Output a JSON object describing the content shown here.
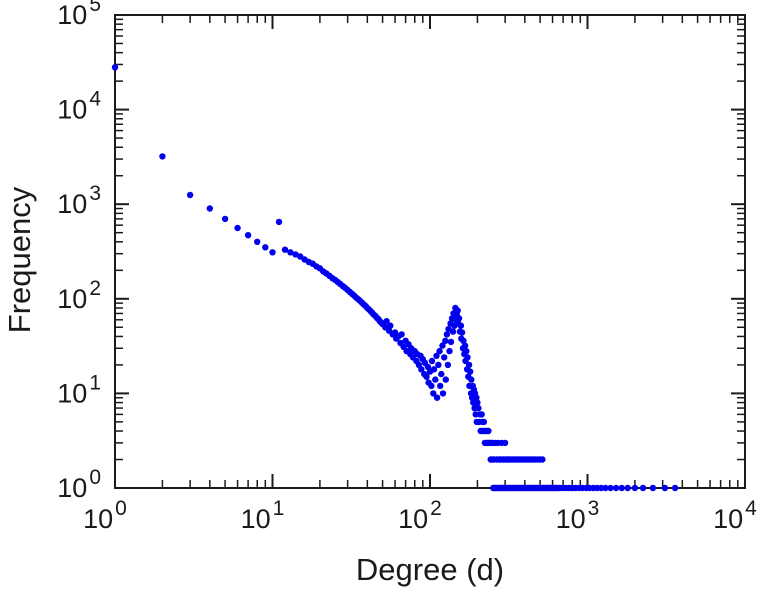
{
  "chart_data": {
    "type": "scatter",
    "title": "",
    "xlabel": "Degree (d)",
    "ylabel": "Frequency",
    "x_scale": "log",
    "y_scale": "log",
    "xlim": [
      1,
      10000
    ],
    "ylim": [
      1,
      100000
    ],
    "x_tick_exponents": [
      0,
      1,
      2,
      3,
      4
    ],
    "y_tick_exponents": [
      0,
      1,
      2,
      3,
      4,
      5
    ],
    "tick_base": "10",
    "grid": false,
    "legend": "none",
    "point_color": "#0000ee",
    "axis_color": "#1a1a1a",
    "background_color": "#ffffff",
    "points": [
      [
        1,
        28000
      ],
      [
        2,
        3200
      ],
      [
        3,
        1250
      ],
      [
        4,
        900
      ],
      [
        5,
        700
      ],
      [
        6,
        560
      ],
      [
        7,
        470
      ],
      [
        8,
        400
      ],
      [
        9,
        350
      ],
      [
        10,
        310
      ],
      [
        11,
        650
      ],
      [
        12,
        330
      ],
      [
        13,
        310
      ],
      [
        14,
        295
      ],
      [
        15,
        280
      ],
      [
        16,
        260
      ],
      [
        17,
        245
      ],
      [
        18,
        235
      ],
      [
        19,
        220
      ],
      [
        20,
        210
      ],
      [
        21,
        195
      ],
      [
        22,
        185
      ],
      [
        23,
        175
      ],
      [
        24,
        165
      ],
      [
        25,
        158
      ],
      [
        26,
        150
      ],
      [
        27,
        143
      ],
      [
        28,
        136
      ],
      [
        29,
        130
      ],
      [
        30,
        124
      ],
      [
        31,
        118
      ],
      [
        32,
        113
      ],
      [
        33,
        108
      ],
      [
        34,
        103
      ],
      [
        35,
        99
      ],
      [
        36,
        95
      ],
      [
        37,
        91
      ],
      [
        38,
        87
      ],
      [
        39,
        84
      ],
      [
        40,
        80
      ],
      [
        41,
        77
      ],
      [
        42,
        74
      ],
      [
        43,
        71
      ],
      [
        44,
        68
      ],
      [
        45,
        66
      ],
      [
        46,
        63
      ],
      [
        47,
        61
      ],
      [
        48,
        58
      ],
      [
        49,
        56
      ],
      [
        50,
        54
      ],
      [
        52,
        50
      ],
      [
        53,
        58
      ],
      [
        55,
        46
      ],
      [
        56,
        52
      ],
      [
        58,
        42
      ],
      [
        60,
        44
      ],
      [
        61,
        38
      ],
      [
        63,
        40
      ],
      [
        65,
        34
      ],
      [
        66,
        42
      ],
      [
        68,
        31
      ],
      [
        70,
        36
      ],
      [
        71,
        28
      ],
      [
        73,
        33
      ],
      [
        75,
        26
      ],
      [
        76,
        30
      ],
      [
        78,
        24
      ],
      [
        80,
        28
      ],
      [
        82,
        22
      ],
      [
        83,
        26
      ],
      [
        85,
        20
      ],
      [
        87,
        25
      ],
      [
        88,
        18
      ],
      [
        90,
        23
      ],
      [
        92,
        16
      ],
      [
        93,
        21
      ],
      [
        95,
        15
      ],
      [
        97,
        19
      ],
      [
        98,
        13
      ],
      [
        100,
        17
      ],
      [
        102,
        12
      ],
      [
        103,
        22
      ],
      [
        105,
        10
      ],
      [
        106,
        18
      ],
      [
        108,
        14
      ],
      [
        110,
        25
      ],
      [
        111,
        9
      ],
      [
        113,
        20
      ],
      [
        115,
        28
      ],
      [
        116,
        12
      ],
      [
        118,
        16
      ],
      [
        120,
        32
      ],
      [
        121,
        10
      ],
      [
        123,
        24
      ],
      [
        125,
        36
      ],
      [
        126,
        14
      ],
      [
        128,
        42
      ],
      [
        130,
        20
      ],
      [
        131,
        48
      ],
      [
        133,
        28
      ],
      [
        135,
        55
      ],
      [
        136,
        35
      ],
      [
        138,
        62
      ],
      [
        140,
        45
      ],
      [
        141,
        70
      ],
      [
        143,
        52
      ],
      [
        145,
        80
      ],
      [
        146,
        60
      ],
      [
        148,
        68
      ],
      [
        150,
        75
      ],
      [
        151,
        55
      ],
      [
        153,
        62
      ],
      [
        155,
        45
      ],
      [
        157,
        52
      ],
      [
        158,
        38
      ],
      [
        160,
        44
      ],
      [
        162,
        30
      ],
      [
        163,
        36
      ],
      [
        165,
        26
      ],
      [
        167,
        32
      ],
      [
        168,
        22
      ],
      [
        170,
        28
      ],
      [
        172,
        18
      ],
      [
        173,
        24
      ],
      [
        175,
        15
      ],
      [
        177,
        20
      ],
      [
        178,
        12
      ],
      [
        180,
        17
      ],
      [
        182,
        10
      ],
      [
        183,
        14
      ],
      [
        185,
        9
      ],
      [
        187,
        12
      ],
      [
        188,
        8
      ],
      [
        190,
        11
      ],
      [
        192,
        7
      ],
      [
        193,
        10
      ],
      [
        195,
        6
      ],
      [
        197,
        9
      ],
      [
        198,
        5
      ],
      [
        200,
        8
      ],
      [
        203,
        7
      ],
      [
        205,
        5
      ],
      [
        208,
        6
      ],
      [
        210,
        4
      ],
      [
        213,
        6
      ],
      [
        215,
        5
      ],
      [
        218,
        4
      ],
      [
        220,
        5
      ],
      [
        223,
        3
      ],
      [
        225,
        4
      ],
      [
        228,
        3
      ],
      [
        230,
        4
      ],
      [
        233,
        3
      ],
      [
        235,
        4
      ],
      [
        238,
        3
      ],
      [
        240,
        3
      ],
      [
        243,
        2
      ],
      [
        245,
        3
      ],
      [
        248,
        2
      ],
      [
        250,
        3
      ],
      [
        255,
        2
      ],
      [
        260,
        3
      ],
      [
        265,
        2
      ],
      [
        270,
        3
      ],
      [
        275,
        2
      ],
      [
        280,
        2
      ],
      [
        285,
        3
      ],
      [
        290,
        2
      ],
      [
        295,
        2
      ],
      [
        300,
        3
      ],
      [
        305,
        2
      ],
      [
        310,
        2
      ],
      [
        318,
        2
      ],
      [
        326,
        2
      ],
      [
        335,
        2
      ],
      [
        344,
        2
      ],
      [
        354,
        2
      ],
      [
        364,
        2
      ],
      [
        375,
        2
      ],
      [
        386,
        2
      ],
      [
        398,
        2
      ],
      [
        410,
        2
      ],
      [
        423,
        2
      ],
      [
        437,
        2
      ],
      [
        451,
        2
      ],
      [
        466,
        2
      ],
      [
        482,
        2
      ],
      [
        499,
        2
      ],
      [
        517,
        2
      ],
      [
        252,
        1
      ],
      [
        257,
        1
      ],
      [
        262,
        1
      ],
      [
        267,
        1
      ],
      [
        272,
        1
      ],
      [
        278,
        1
      ],
      [
        283,
        1
      ],
      [
        289,
        1
      ],
      [
        295,
        1
      ],
      [
        301,
        1
      ],
      [
        307,
        1
      ],
      [
        313,
        1
      ],
      [
        320,
        1
      ],
      [
        326,
        1
      ],
      [
        333,
        1
      ],
      [
        340,
        1
      ],
      [
        347,
        1
      ],
      [
        354,
        1
      ],
      [
        362,
        1
      ],
      [
        369,
        1
      ],
      [
        377,
        1
      ],
      [
        385,
        1
      ],
      [
        393,
        1
      ],
      [
        401,
        1
      ],
      [
        410,
        1
      ],
      [
        418,
        1
      ],
      [
        427,
        1
      ],
      [
        436,
        1
      ],
      [
        445,
        1
      ],
      [
        454,
        1
      ],
      [
        464,
        1
      ],
      [
        474,
        1
      ],
      [
        484,
        1
      ],
      [
        494,
        1
      ],
      [
        504,
        1
      ],
      [
        515,
        1
      ],
      [
        526,
        1
      ],
      [
        537,
        1
      ],
      [
        548,
        1
      ],
      [
        560,
        1
      ],
      [
        572,
        1
      ],
      [
        584,
        1
      ],
      [
        596,
        1
      ],
      [
        609,
        1
      ],
      [
        622,
        1
      ],
      [
        635,
        1
      ],
      [
        648,
        1
      ],
      [
        670,
        1
      ],
      [
        700,
        1
      ],
      [
        730,
        1
      ],
      [
        765,
        1
      ],
      [
        800,
        1
      ],
      [
        840,
        1
      ],
      [
        885,
        1
      ],
      [
        930,
        1
      ],
      [
        980,
        1
      ],
      [
        1030,
        1
      ],
      [
        1090,
        1
      ],
      [
        1150,
        1
      ],
      [
        1220,
        1
      ],
      [
        1300,
        1
      ],
      [
        1400,
        1
      ],
      [
        1520,
        1
      ],
      [
        1650,
        1
      ],
      [
        1800,
        1
      ],
      [
        2000,
        1
      ],
      [
        2250,
        1
      ],
      [
        2600,
        1
      ],
      [
        3100,
        1
      ],
      [
        3600,
        1
      ]
    ]
  }
}
